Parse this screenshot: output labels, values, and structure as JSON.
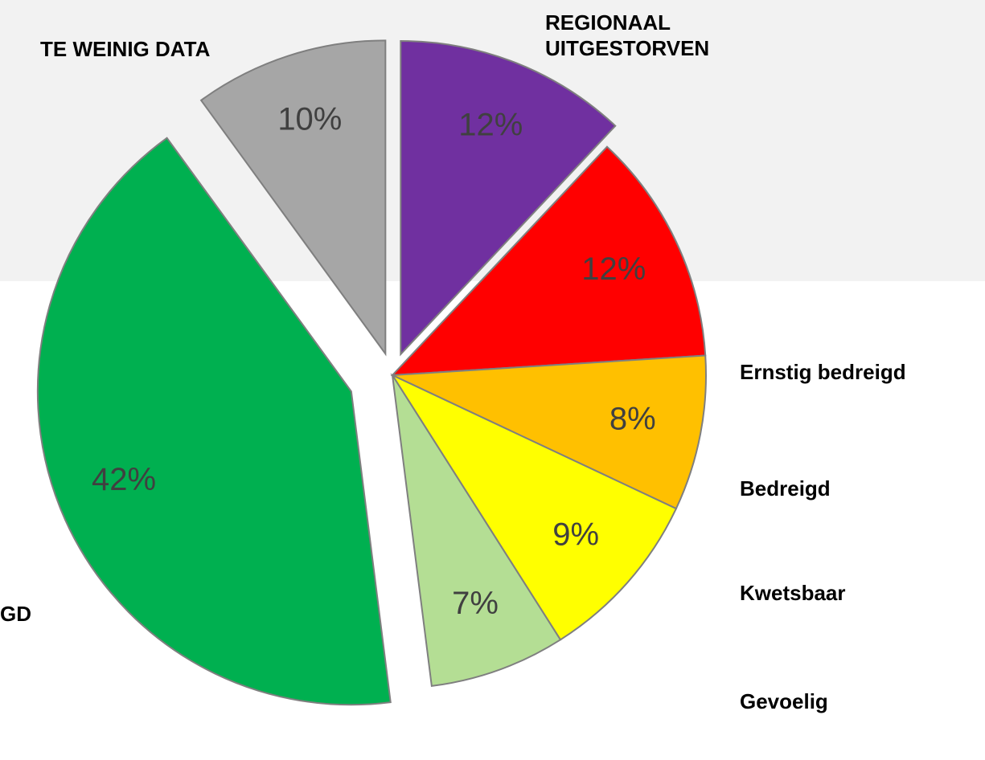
{
  "chart_data": {
    "type": "pie",
    "categories": [
      "REGIONAAL UITGESTORVEN",
      "Ernstig bedreigd",
      "Bedreigd",
      "Kwetsbaar",
      "Gevoelig",
      "GD",
      "TE WEINIG DATA"
    ],
    "values": [
      12,
      12,
      8,
      9,
      7,
      42,
      10
    ],
    "value_labels": [
      "12%",
      "12%",
      "8%",
      "9%",
      "7%",
      "42%",
      "10%"
    ],
    "colors": [
      "#7030a0",
      "#ff0000",
      "#ffc000",
      "#ffff00",
      "#b4de94",
      "#00b050",
      "#a6a6a6"
    ]
  }
}
